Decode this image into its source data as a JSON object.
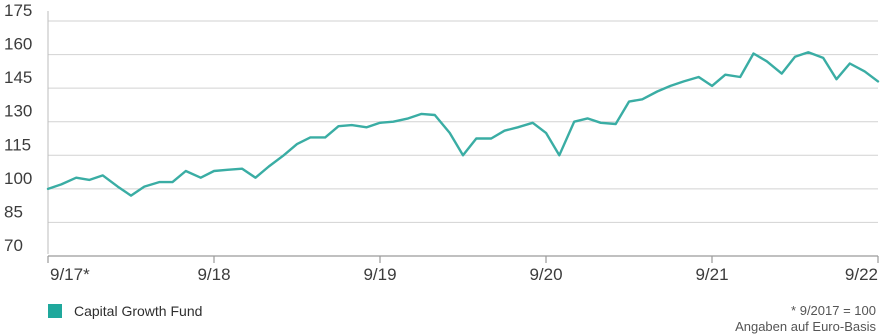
{
  "chart_data": {
    "type": "line",
    "title": "",
    "xlabel": "",
    "ylabel": "",
    "ylim": [
      70,
      175
    ],
    "yticks": [
      70,
      85,
      100,
      115,
      130,
      145,
      160,
      175
    ],
    "ytick_labels": [
      "70",
      "85",
      "100",
      "115",
      "130",
      "145",
      "160",
      "175"
    ],
    "xticks": [
      2017.75,
      2018.75,
      2019.75,
      2020.75,
      2021.75,
      2022.75
    ],
    "xtick_labels": [
      "9/17*",
      "9/18",
      "9/19",
      "9/20",
      "9/21",
      "9/22"
    ],
    "xlim": [
      2017.75,
      2022.75
    ],
    "grid": "horizontal",
    "series": [
      {
        "name": "Capital Growth Fund",
        "color": "#3aada4",
        "x": [
          2017.75,
          2017.83,
          2017.92,
          2018.0,
          2018.08,
          2018.17,
          2018.25,
          2018.33,
          2018.42,
          2018.5,
          2018.58,
          2018.67,
          2018.75,
          2018.83,
          2018.92,
          2019.0,
          2019.08,
          2019.17,
          2019.25,
          2019.33,
          2019.42,
          2019.5,
          2019.58,
          2019.67,
          2019.75,
          2019.83,
          2019.92,
          2020.0,
          2020.08,
          2020.17,
          2020.25,
          2020.33,
          2020.42,
          2020.5,
          2020.58,
          2020.67,
          2020.75,
          2020.83,
          2020.92,
          2021.0,
          2021.08,
          2021.17,
          2021.25,
          2021.33,
          2021.42,
          2021.5,
          2021.58,
          2021.67,
          2021.75,
          2021.83,
          2021.92,
          2022.0,
          2022.08,
          2022.17,
          2022.25,
          2022.33,
          2022.42,
          2022.5,
          2022.58,
          2022.67,
          2022.75
        ],
        "values": [
          100,
          102,
          105,
          104,
          106,
          101,
          97,
          101,
          103,
          103,
          108,
          105,
          108,
          108.5,
          109,
          105,
          110,
          115,
          120,
          123,
          123,
          128,
          128.5,
          127.5,
          129.5,
          130,
          131.5,
          133.5,
          133,
          125,
          115,
          122.5,
          122.5,
          126,
          127.5,
          129.5,
          125,
          115,
          130,
          131.5,
          129.5,
          129,
          139,
          140,
          143.5,
          146,
          148,
          150,
          146,
          151,
          150,
          160.5,
          157,
          151.5,
          159,
          161,
          158.5,
          149,
          156,
          152.5,
          148
        ]
      }
    ]
  },
  "legend": {
    "label": "Capital Growth Fund",
    "color": "#1fa89c"
  },
  "footnote": {
    "line1": "* 9/2017 = 100",
    "line2": "Angaben auf Euro-Basis"
  }
}
